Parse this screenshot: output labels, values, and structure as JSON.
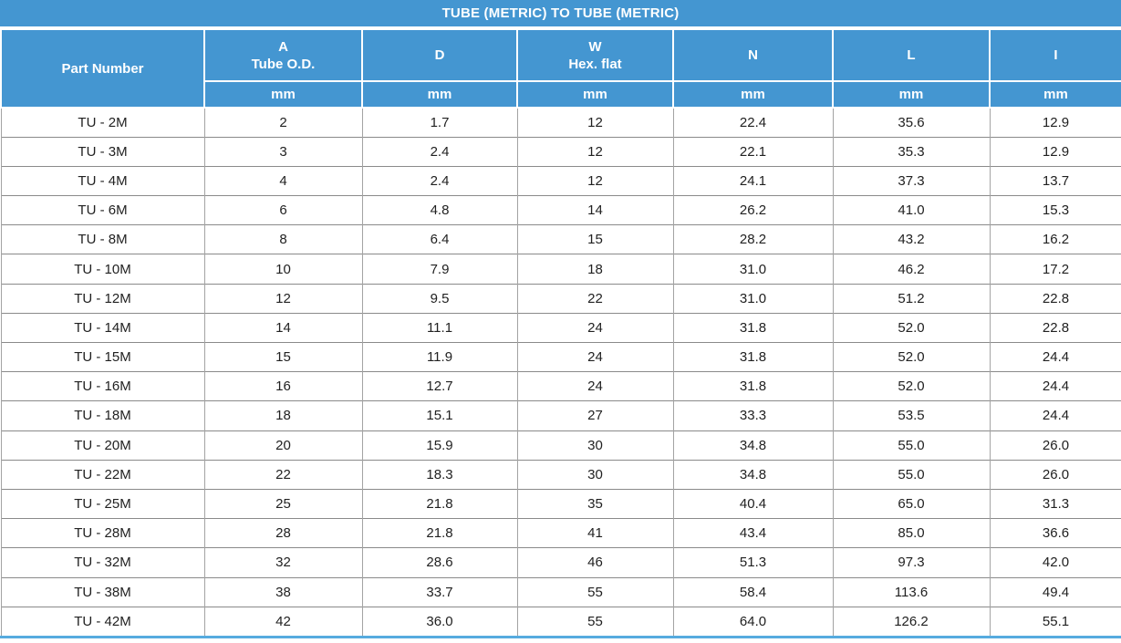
{
  "title": "TUBE (METRIC) TO TUBE (METRIC)",
  "table": {
    "part_number_header": "Part Number",
    "columns": [
      {
        "label": "A",
        "sublabel": "Tube O.D.",
        "unit": "mm"
      },
      {
        "label": "D",
        "sublabel": "",
        "unit": "mm"
      },
      {
        "label": "W",
        "sublabel": "Hex. flat",
        "unit": "mm"
      },
      {
        "label": "N",
        "sublabel": "",
        "unit": "mm"
      },
      {
        "label": "L",
        "sublabel": "",
        "unit": "mm"
      },
      {
        "label": "I",
        "sublabel": "",
        "unit": "mm"
      }
    ],
    "rows": [
      [
        "TU - 2M",
        "2",
        "1.7",
        "12",
        "22.4",
        "35.6",
        "12.9"
      ],
      [
        "TU - 3M",
        "3",
        "2.4",
        "12",
        "22.1",
        "35.3",
        "12.9"
      ],
      [
        "TU - 4M",
        "4",
        "2.4",
        "12",
        "24.1",
        "37.3",
        "13.7"
      ],
      [
        "TU - 6M",
        "6",
        "4.8",
        "14",
        "26.2",
        "41.0",
        "15.3"
      ],
      [
        "TU - 8M",
        "8",
        "6.4",
        "15",
        "28.2",
        "43.2",
        "16.2"
      ],
      [
        "TU - 10M",
        "10",
        "7.9",
        "18",
        "31.0",
        "46.2",
        "17.2"
      ],
      [
        "TU - 12M",
        "12",
        "9.5",
        "22",
        "31.0",
        "51.2",
        "22.8"
      ],
      [
        "TU - 14M",
        "14",
        "11.1",
        "24",
        "31.8",
        "52.0",
        "22.8"
      ],
      [
        "TU - 15M",
        "15",
        "11.9",
        "24",
        "31.8",
        "52.0",
        "24.4"
      ],
      [
        "TU - 16M",
        "16",
        "12.7",
        "24",
        "31.8",
        "52.0",
        "24.4"
      ],
      [
        "TU - 18M",
        "18",
        "15.1",
        "27",
        "33.3",
        "53.5",
        "24.4"
      ],
      [
        "TU - 20M",
        "20",
        "15.9",
        "30",
        "34.8",
        "55.0",
        "26.0"
      ],
      [
        "TU - 22M",
        "22",
        "18.3",
        "30",
        "34.8",
        "55.0",
        "26.0"
      ],
      [
        "TU - 25M",
        "25",
        "21.8",
        "35",
        "40.4",
        "65.0",
        "31.3"
      ],
      [
        "TU - 28M",
        "28",
        "21.8",
        "41",
        "43.4",
        "85.0",
        "36.6"
      ],
      [
        "TU - 32M",
        "32",
        "28.6",
        "46",
        "51.3",
        "97.3",
        "42.0"
      ],
      [
        "TU - 38M",
        "38",
        "33.7",
        "55",
        "58.4",
        "113.6",
        "49.4"
      ],
      [
        "TU - 42M",
        "42",
        "36.0",
        "55",
        "64.0",
        "126.2",
        "55.1"
      ]
    ]
  },
  "colors": {
    "header_blue": "#4496d1",
    "bottom_border_blue": "#56abdf",
    "row_line_gray": "#8a8a8a",
    "column_line_gray": "#a3a3a3",
    "body_text": "#212121",
    "header_text": "#ffffff"
  }
}
